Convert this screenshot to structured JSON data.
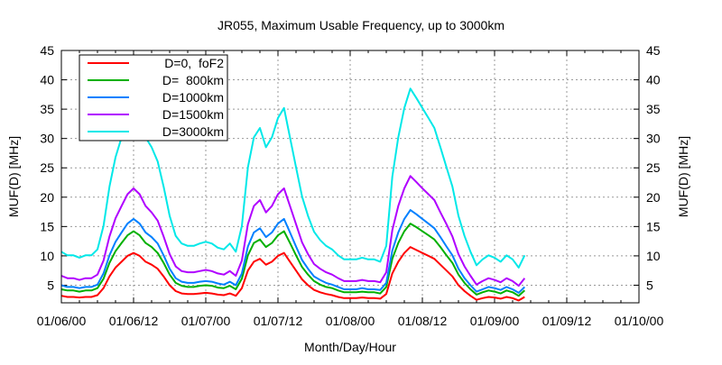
{
  "chart_data": {
    "type": "line",
    "title": "JR055, Maximum Usable Frequency, up to 3000km",
    "xlabel": "Month/Day/Hour",
    "ylabel": "MUF(D) [MHz]",
    "ylabel_right": "MUF(D) [MHz]",
    "xlim": [
      0,
      96
    ],
    "ylim": [
      2,
      45
    ],
    "x_unit": "hours since 01/06/00",
    "x_start": 0,
    "x_step": 1,
    "grid": true,
    "legend_position": "top-left",
    "x_ticks": [
      {
        "value": 0,
        "label": "01/06/00"
      },
      {
        "value": 12,
        "label": "01/06/12"
      },
      {
        "value": 24,
        "label": "01/07/00"
      },
      {
        "value": 36,
        "label": "01/07/12"
      },
      {
        "value": 48,
        "label": "01/08/00"
      },
      {
        "value": 60,
        "label": "01/08/12"
      },
      {
        "value": 72,
        "label": "01/09/00"
      },
      {
        "value": 84,
        "label": "01/09/12"
      },
      {
        "value": 96,
        "label": "01/10/00"
      }
    ],
    "y_ticks": [
      {
        "value": 5,
        "label": "5"
      },
      {
        "value": 10,
        "label": "10"
      },
      {
        "value": 15,
        "label": "15"
      },
      {
        "value": 20,
        "label": "20"
      },
      {
        "value": 25,
        "label": "25"
      },
      {
        "value": 30,
        "label": "30"
      },
      {
        "value": 35,
        "label": "35"
      },
      {
        "value": 40,
        "label": "40"
      },
      {
        "value": 45,
        "label": "45"
      }
    ],
    "series": [
      {
        "name": "D=0,  foF2",
        "color": "#ff0000",
        "values": [
          3.2,
          3.0,
          3.0,
          2.9,
          3.0,
          3.0,
          3.3,
          4.5,
          6.5,
          8.0,
          9.0,
          10.0,
          10.5,
          10.0,
          9.0,
          8.5,
          7.8,
          6.5,
          5.0,
          4.0,
          3.6,
          3.5,
          3.5,
          3.6,
          3.7,
          3.6,
          3.4,
          3.3,
          3.6,
          3.2,
          4.5,
          7.5,
          9.0,
          9.5,
          8.5,
          9.0,
          10.0,
          10.5,
          9.0,
          7.5,
          6.0,
          5.0,
          4.2,
          3.8,
          3.5,
          3.3,
          3.0,
          2.8,
          2.8,
          2.8,
          2.9,
          2.8,
          2.8,
          2.7,
          3.5,
          7.0,
          9.0,
          10.5,
          11.5,
          11.0,
          10.5,
          10.0,
          9.5,
          8.5,
          7.5,
          6.5,
          5.0,
          4.0,
          3.2,
          2.5,
          2.8,
          3.0,
          2.9,
          2.7,
          3.0,
          2.8,
          2.4,
          3.0
        ]
      },
      {
        "name": "D=  800km",
        "color": "#00b000",
        "values": [
          4.3,
          4.1,
          4.1,
          3.9,
          4.1,
          4.1,
          4.5,
          6.1,
          8.8,
          10.8,
          12.2,
          13.5,
          14.2,
          13.5,
          12.2,
          11.5,
          10.5,
          8.8,
          6.8,
          5.4,
          4.9,
          4.7,
          4.7,
          4.9,
          5.0,
          4.9,
          4.6,
          4.5,
          4.9,
          4.3,
          6.1,
          10.1,
          12.2,
          12.8,
          11.5,
          12.2,
          13.5,
          14.2,
          12.2,
          10.1,
          8.1,
          6.8,
          5.7,
          5.1,
          4.7,
          4.5,
          4.1,
          3.8,
          3.8,
          3.8,
          3.9,
          3.8,
          3.8,
          3.6,
          4.7,
          9.5,
          12.2,
          14.2,
          15.5,
          14.9,
          14.2,
          13.5,
          12.8,
          11.5,
          10.1,
          8.8,
          6.8,
          5.4,
          4.3,
          3.4,
          3.8,
          4.1,
          3.9,
          3.6,
          4.1,
          3.8,
          3.2,
          4.1
        ]
      },
      {
        "name": "D=1000km",
        "color": "#0080ff",
        "values": [
          5.0,
          4.7,
          4.7,
          4.5,
          4.7,
          4.7,
          5.1,
          7.0,
          10.1,
          12.4,
          14.0,
          15.5,
          16.3,
          15.5,
          14.0,
          13.2,
          12.1,
          10.1,
          7.8,
          6.2,
          5.6,
          5.4,
          5.4,
          5.6,
          5.7,
          5.6,
          5.3,
          5.1,
          5.6,
          5.0,
          7.0,
          11.6,
          14.0,
          14.7,
          13.2,
          14.0,
          15.5,
          16.3,
          14.0,
          11.6,
          9.3,
          7.8,
          6.5,
          5.9,
          5.4,
          5.1,
          4.7,
          4.3,
          4.3,
          4.3,
          4.5,
          4.3,
          4.3,
          4.2,
          5.4,
          10.9,
          14.0,
          16.3,
          17.8,
          17.1,
          16.3,
          15.5,
          14.7,
          13.2,
          11.6,
          10.1,
          7.8,
          6.2,
          5.0,
          3.9,
          4.3,
          4.7,
          4.5,
          4.2,
          4.7,
          4.3,
          3.7,
          4.7
        ]
      },
      {
        "name": "D=1500km",
        "color": "#b000ff",
        "values": [
          6.6,
          6.2,
          6.2,
          5.9,
          6.2,
          6.2,
          6.8,
          9.2,
          13.3,
          16.4,
          18.5,
          20.5,
          21.5,
          20.5,
          18.5,
          17.4,
          16.0,
          13.3,
          10.3,
          8.2,
          7.4,
          7.2,
          7.2,
          7.4,
          7.6,
          7.4,
          7.0,
          6.8,
          7.4,
          6.6,
          9.2,
          15.4,
          18.5,
          19.5,
          17.4,
          18.5,
          20.5,
          21.5,
          18.5,
          15.4,
          12.3,
          10.3,
          8.6,
          7.8,
          7.2,
          6.8,
          6.2,
          5.7,
          5.7,
          5.7,
          5.9,
          5.7,
          5.7,
          5.5,
          7.2,
          14.4,
          18.5,
          21.5,
          23.6,
          22.6,
          21.5,
          20.5,
          19.5,
          17.4,
          15.4,
          13.3,
          10.3,
          8.2,
          6.6,
          5.1,
          5.7,
          6.2,
          5.9,
          5.5,
          6.2,
          5.7,
          4.9,
          6.2
        ]
      },
      {
        "name": "D=3000km",
        "color": "#00e8e8",
        "values": [
          10.7,
          10.1,
          10.1,
          9.7,
          10.1,
          10.1,
          11.1,
          15.1,
          21.8,
          26.8,
          30.2,
          33.5,
          35.2,
          33.5,
          30.2,
          28.5,
          26.1,
          21.8,
          16.8,
          13.4,
          12.1,
          11.7,
          11.7,
          12.1,
          12.4,
          12.1,
          11.4,
          11.1,
          12.1,
          10.7,
          15.1,
          25.1,
          30.2,
          31.8,
          28.5,
          30.2,
          33.5,
          35.2,
          30.2,
          25.1,
          20.1,
          16.8,
          14.1,
          12.7,
          11.7,
          11.1,
          10.1,
          9.4,
          9.4,
          9.4,
          9.7,
          9.4,
          9.4,
          9.0,
          11.7,
          23.5,
          30.2,
          35.2,
          38.5,
          36.9,
          35.2,
          33.5,
          31.8,
          28.5,
          25.1,
          21.8,
          16.8,
          13.4,
          10.7,
          8.4,
          9.4,
          10.1,
          9.7,
          9.0,
          10.1,
          9.4,
          8.0,
          10.1
        ]
      }
    ]
  }
}
